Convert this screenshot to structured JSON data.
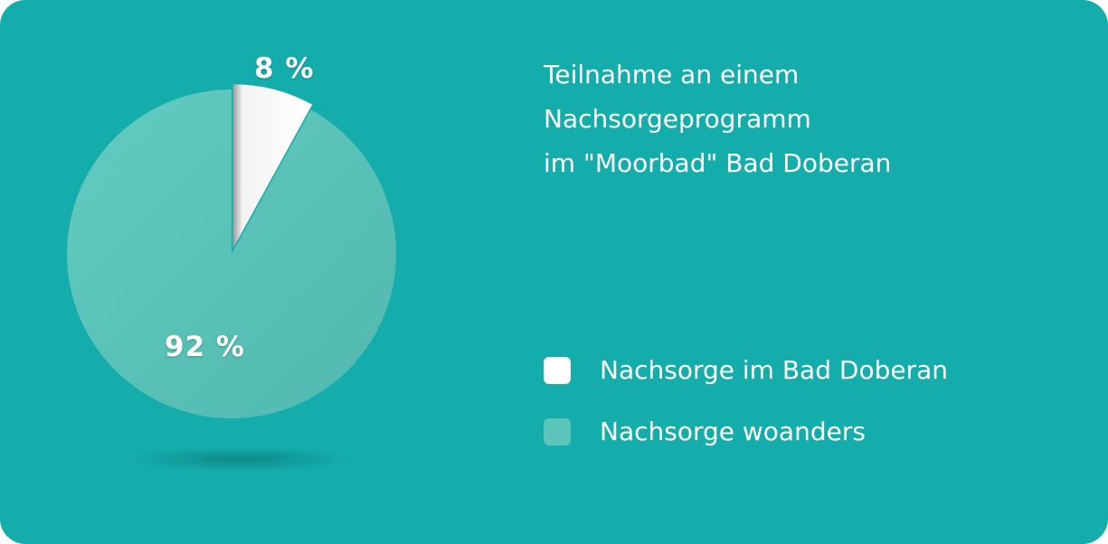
{
  "chart_data": {
    "type": "pie",
    "title_lines": [
      "Teilnahme an einem",
      "Nachsorgeprogramm",
      "im \"Moorbad\" Bad Doberan"
    ],
    "categories": [
      "Nachsorge im Bad Doberan",
      "Nachsorge woanders"
    ],
    "values": [
      8,
      92
    ],
    "data_labels": [
      "8 %",
      "92 %"
    ],
    "colors": [
      "#ffffff",
      "#5cc4bb"
    ],
    "legend_position": "right"
  },
  "colors": {
    "background": "#15adac",
    "slice_shadow": "#0e8f8e"
  }
}
